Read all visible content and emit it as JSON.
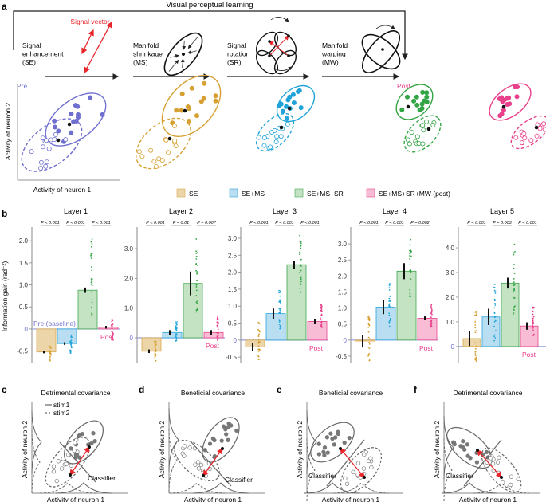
{
  "panel_a": {
    "label": "a",
    "title": "Visual perceptual learning",
    "signal_vector": "Signal vector",
    "stages": [
      {
        "lines": [
          "Signal",
          "enhancement",
          "(SE)"
        ]
      },
      {
        "lines": [
          "Manifold",
          "shrinkage",
          "(MS)"
        ]
      },
      {
        "lines": [
          "Signal",
          "rotation",
          "(SR)"
        ]
      },
      {
        "lines": [
          "Manifold",
          "warping",
          "(MW)"
        ]
      }
    ],
    "pre": "Pre",
    "post": "Post",
    "ylabel": "Activity of neuron 2",
    "xlabel": "Activity of neuron 1"
  },
  "legend": [
    {
      "label": "SE",
      "fill": "#ecd6a9",
      "stroke": "#d8a94c"
    },
    {
      "label": "SE+MS",
      "fill": "#b9def1",
      "stroke": "#2aa4dc"
    },
    {
      "label": "SE+MS+SR",
      "fill": "#c3e3c3",
      "stroke": "#3fa552"
    },
    {
      "label": "SE+MS+SR+MW (post)",
      "fill": "#f8bcd5",
      "stroke": "#e8458c"
    }
  ],
  "colors": {
    "pre": "#6f6fd0",
    "post": "#e8408a",
    "se": "#d6a032",
    "ms": "#1fa3d8",
    "sr": "#33a544",
    "mw": "#e8408a",
    "signal": "#e8262b"
  },
  "chart_data": {
    "type": "bar",
    "label": "b",
    "ylabel": "Information gain (rad⁻²)",
    "baseline_label": "Pre (baseline)",
    "post_label": "Post",
    "categories": [
      "SE",
      "SE+MS",
      "SE+MS+SR",
      "SE+MS+SR+MW (post)"
    ],
    "panels": [
      {
        "title": "Layer 1",
        "ylim": [
          -0.76,
          2.22
        ],
        "ticks": [
          "-0.5",
          "0",
          "0.5",
          "1.0",
          "1.5",
          "2.0"
        ],
        "values": [
          -0.52,
          -0.33,
          0.88,
          0.04
        ],
        "err": [
          0.03,
          0.03,
          0.06,
          0.03
        ],
        "dot_range": [
          [
            -0.72,
            -0.35
          ],
          [
            -0.55,
            -0.12
          ],
          [
            0.3,
            2.1
          ],
          [
            -0.25,
            0.25
          ]
        ],
        "pvalues": [
          "P < 0.001",
          "P < 0.001",
          "P < 0.001"
        ]
      },
      {
        "title": "Layer 2",
        "ylim": [
          -0.83,
          3.59
        ],
        "ticks": [
          "0",
          "1.0",
          "2.0",
          "3.0"
        ],
        "values": [
          -0.45,
          0.18,
          1.83,
          0.18
        ],
        "err": [
          0.06,
          0.08,
          0.4,
          0.08
        ],
        "dot_range": [
          [
            -0.8,
            -0.1
          ],
          [
            -0.15,
            0.55
          ],
          [
            0.6,
            3.4
          ],
          [
            -0.1,
            0.8
          ]
        ],
        "pvalues": [
          "P < 0.001",
          "P = 0.01",
          "P = 0.007"
        ]
      },
      {
        "title": "Layer 3",
        "ylim": [
          -0.66,
          3.21
        ],
        "ticks": [
          "-0.5",
          "0",
          "0.5",
          "1.0",
          "1.5",
          "2.0",
          "2.5",
          "3.0"
        ],
        "values": [
          -0.2,
          0.78,
          2.22,
          0.55
        ],
        "err": [
          0.12,
          0.15,
          0.12,
          0.08
        ],
        "dot_range": [
          [
            -0.6,
            0.55
          ],
          [
            0.3,
            1.5
          ],
          [
            1.4,
            3.1
          ],
          [
            0.35,
            1.05
          ]
        ],
        "pvalues": [
          "P < 0.001",
          "P < 0.001",
          "P < 0.001"
        ]
      },
      {
        "title": "Layer 4",
        "ylim": [
          -0.7,
          3.4
        ],
        "ticks": [
          "-0.5",
          "0",
          "0.5",
          "1.0",
          "1.5",
          "2.0",
          "2.5",
          "3.0"
        ],
        "values": [
          -0.03,
          1.03,
          2.15,
          0.68
        ],
        "err": [
          0.2,
          0.22,
          0.25,
          0.06
        ],
        "dot_range": [
          [
            -0.65,
            0.78
          ],
          [
            0.4,
            1.78
          ],
          [
            1.2,
            3.2
          ],
          [
            0.4,
            1.12
          ]
        ],
        "pvalues": [
          "P < 0.001",
          "P < 0.001",
          "P = 0.002"
        ]
      },
      {
        "title": "Layer 5",
        "ylim": [
          -0.65,
          4.68
        ],
        "ticks": [
          "0",
          "1.0",
          "2.0",
          "3.0",
          "4.0"
        ],
        "values": [
          0.32,
          1.2,
          2.57,
          0.83
        ],
        "err": [
          0.3,
          0.33,
          0.22,
          0.15
        ],
        "dot_range": [
          [
            -0.6,
            1.45
          ],
          [
            0.2,
            2.55
          ],
          [
            1.1,
            4.45
          ],
          [
            0.3,
            1.6
          ]
        ],
        "pvalues": [
          "P < 0.001",
          "P = 0.003",
          "P < 0.001"
        ]
      }
    ]
  },
  "panels_cf": [
    {
      "label": "c",
      "title": "Detrimental covariance",
      "classifier": "Classifier",
      "ylabel": "Activity of neuron 2",
      "xlabel": "Activity of neuron 1",
      "legend": [
        "stim1",
        "stim2"
      ]
    },
    {
      "label": "d",
      "title": "Beneficial covariance",
      "classifier": "Classifier",
      "ylabel": "Activity of neuron 2",
      "xlabel": "Activity of neuron 1"
    },
    {
      "label": "e",
      "title": "Beneficial covariance",
      "classifier": "Classifier",
      "ylabel": "Activity of neuron 2",
      "xlabel": "Activity of neuron 1"
    },
    {
      "label": "f",
      "title": "Detrimental covariance",
      "classifier": "Classifier",
      "ylabel": "Activity of neuron 2",
      "xlabel": "Activity of neuron 1"
    }
  ]
}
